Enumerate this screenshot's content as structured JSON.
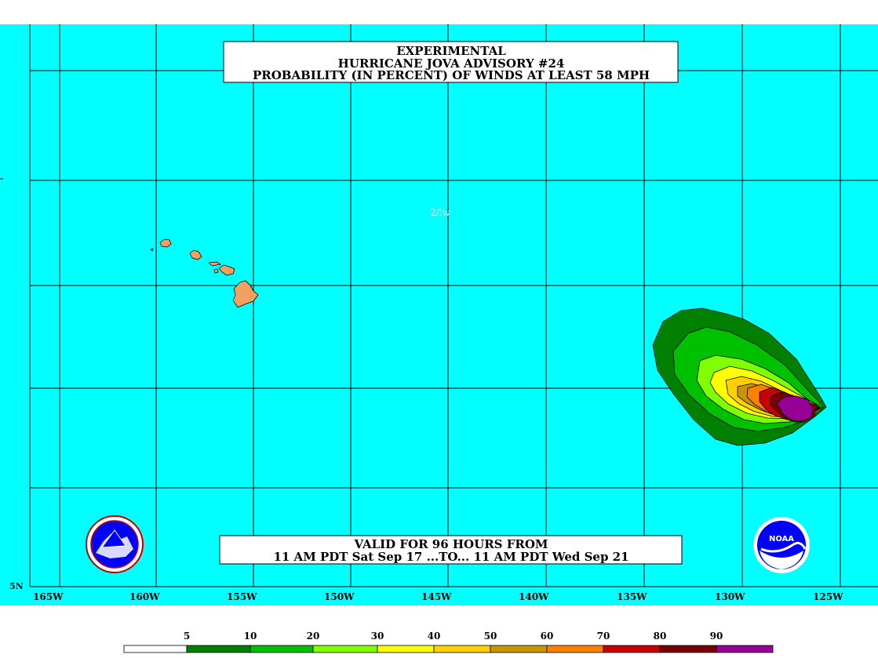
{
  "title_box": {
    "line1": "EXPERIMENTAL",
    "line2": "HURRICANE JOVA ADVISORY #24",
    "line3": "PROBABILITY (IN PERCENT) OF WINDS AT LEAST 58 MPH"
  },
  "valid_box": {
    "line1": "VALID FOR 96 HOURS FROM",
    "line2": "11 AM PDT Sat Sep 17 ...TO... 11 AM PDT Wed Sep 21"
  },
  "map_annotation": "2/lw",
  "lat_label": "5N",
  "lon_labels": [
    "165W",
    "160W",
    "155W",
    "150W",
    "145W",
    "140W",
    "135W",
    "130W",
    "125W"
  ],
  "legend": {
    "labels": [
      "5",
      "10",
      "20",
      "30",
      "40",
      "50",
      "60",
      "70",
      "80",
      "90"
    ],
    "colors": [
      "#ffffff",
      "#007f00",
      "#00c000",
      "#80ff00",
      "#ffff00",
      "#ffd000",
      "#c89600",
      "#ff8000",
      "#c80000",
      "#780000",
      "#960096"
    ]
  },
  "colors": {
    "ocean": "#00ffff",
    "land": "#f0a060",
    "grid": "#000000"
  },
  "logos": {
    "left": "nws-logo",
    "right": "noaa-logo",
    "noaa_text": "NOAA"
  }
}
